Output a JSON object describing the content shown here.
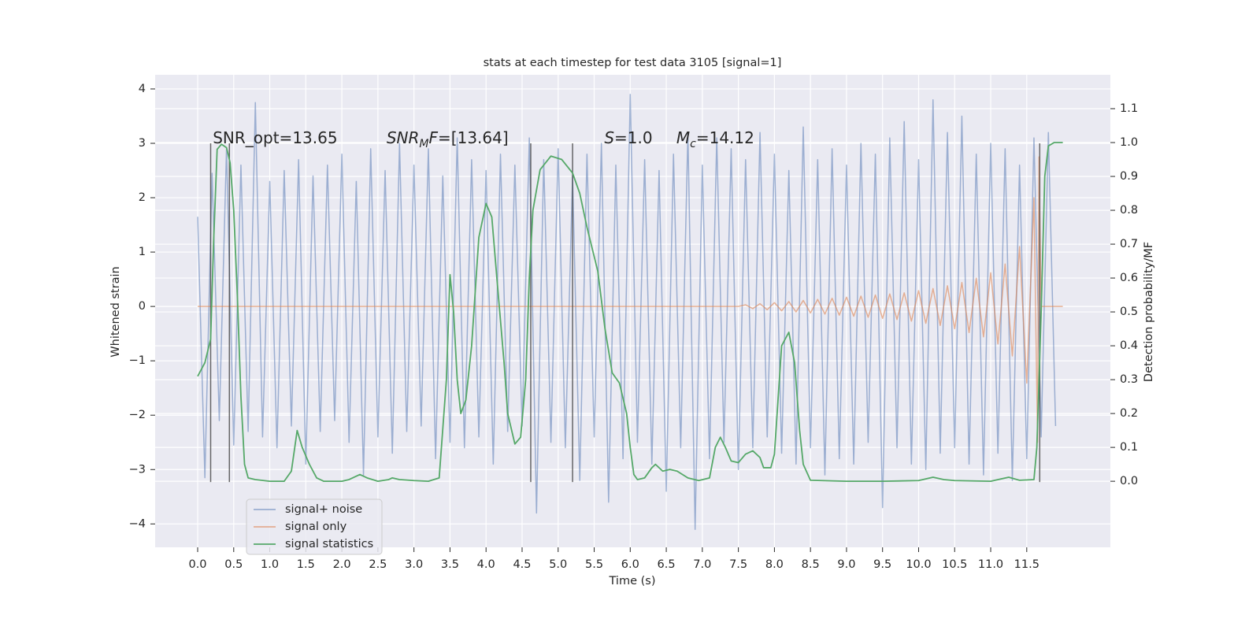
{
  "chart_data": {
    "type": "line",
    "title": "stats at each timestep for test data 3105 [signal=1]",
    "xlabel": "Time (s)",
    "ylabel": "Whitened strain",
    "y2label": "Detection probability/MF",
    "xlim": [
      -0.59,
      12.66
    ],
    "ylim": [
      -4.43,
      4.26
    ],
    "y2lim": [
      -0.195,
      1.2
    ],
    "xticks": [
      {
        "value": 0,
        "label": "0.0"
      },
      {
        "value": 0.5,
        "label": "0.5"
      },
      {
        "value": 1,
        "label": "1.0"
      },
      {
        "value": 1.5,
        "label": "1.5"
      },
      {
        "value": 2,
        "label": "2.0"
      },
      {
        "value": 2.5,
        "label": "2.5"
      },
      {
        "value": 3,
        "label": "3.0"
      },
      {
        "value": 3.5,
        "label": "3.5"
      },
      {
        "value": 4,
        "label": "4.0"
      },
      {
        "value": 4.5,
        "label": "4.5"
      },
      {
        "value": 5,
        "label": "5.0"
      },
      {
        "value": 5.5,
        "label": "5.5"
      },
      {
        "value": 6,
        "label": "6.0"
      },
      {
        "value": 6.5,
        "label": "6.5"
      },
      {
        "value": 7,
        "label": "7.0"
      },
      {
        "value": 7.5,
        "label": "7.5"
      },
      {
        "value": 8,
        "label": "8.0"
      },
      {
        "value": 8.5,
        "label": "8.5"
      },
      {
        "value": 9,
        "label": "9.0"
      },
      {
        "value": 9.5,
        "label": "9.5"
      },
      {
        "value": 10,
        "label": "10.0"
      },
      {
        "value": 10.5,
        "label": "10.5"
      },
      {
        "value": 11,
        "label": "11.0"
      },
      {
        "value": 11.5,
        "label": "11.5"
      }
    ],
    "yticks": [
      {
        "value": -4,
        "label": "−4"
      },
      {
        "value": -3,
        "label": "−3"
      },
      {
        "value": -2,
        "label": "−2"
      },
      {
        "value": -1,
        "label": "−1"
      },
      0,
      1,
      2,
      3,
      4
    ],
    "y2ticks": [
      {
        "value": 0,
        "label": "0.0"
      },
      {
        "value": 0.1,
        "label": "0.1"
      },
      {
        "value": 0.2,
        "label": "0.2"
      },
      {
        "value": 0.3,
        "label": "0.3"
      },
      {
        "value": 0.4,
        "label": "0.4"
      },
      {
        "value": 0.5,
        "label": "0.5"
      },
      {
        "value": 0.6,
        "label": "0.6"
      },
      {
        "value": 0.7,
        "label": "0.7"
      },
      {
        "value": 0.8,
        "label": "0.8"
      },
      {
        "value": 0.9,
        "label": "0.9"
      },
      {
        "value": 1,
        "label": "1.0"
      },
      {
        "value": 1.1,
        "label": "1.1"
      }
    ],
    "grid": true,
    "legend": "lower left",
    "series": [
      {
        "name": "signal+ noise",
        "color": "#4c72b0",
        "opacity": 0.5,
        "x": [
          0,
          0.1,
          0.2,
          0.3,
          0.4,
          0.5,
          0.6,
          0.7,
          0.8,
          0.9,
          1,
          1.1,
          1.2,
          1.3,
          1.4,
          1.5,
          1.6,
          1.7,
          1.8,
          1.9,
          2,
          2.1,
          2.2,
          2.3,
          2.4,
          2.5,
          2.6,
          2.7,
          2.8,
          2.9,
          3,
          3.1,
          3.2,
          3.3,
          3.4,
          3.5,
          3.6,
          3.7,
          3.8,
          3.9,
          4,
          4.1,
          4.2,
          4.3,
          4.4,
          4.5,
          4.6,
          4.7,
          4.8,
          4.9,
          5,
          5.1,
          5.2,
          5.3,
          5.4,
          5.5,
          5.6,
          5.7,
          5.8,
          5.9,
          6,
          6.1,
          6.2,
          6.3,
          6.4,
          6.5,
          6.6,
          6.7,
          6.8,
          6.9,
          7,
          7.1,
          7.2,
          7.3,
          7.4,
          7.5,
          7.6,
          7.7,
          7.8,
          7.9,
          8,
          8.1,
          8.2,
          8.3,
          8.4,
          8.5,
          8.6,
          8.7,
          8.8,
          8.9,
          9,
          9.1,
          9.2,
          9.3,
          9.4,
          9.5,
          9.6,
          9.7,
          9.8,
          9.9,
          10,
          10.1,
          10.2,
          10.3,
          10.4,
          10.5,
          10.6,
          10.7,
          10.8,
          10.9,
          11,
          11.1,
          11.2,
          11.3,
          11.4,
          11.5,
          11.6,
          11.7,
          11.8,
          11.9
        ],
        "values": [
          1.65,
          -3.15,
          2.45,
          -2.1,
          2.9,
          -2.55,
          2.6,
          -2.3,
          3.75,
          -2.4,
          2.3,
          -2.6,
          2.5,
          -2.2,
          2.7,
          -2.9,
          2.4,
          -2.3,
          2.6,
          -2.1,
          2.8,
          -2.5,
          2.3,
          -3.1,
          2.9,
          -2.4,
          2.5,
          -2.7,
          3.0,
          -2.3,
          2.6,
          -2.2,
          2.9,
          -2.8,
          2.4,
          -2.5,
          3.1,
          -2.6,
          2.7,
          -2.4,
          2.5,
          -2.9,
          2.8,
          -2.3,
          2.6,
          -2.2,
          3.1,
          -3.8,
          2.7,
          -2.5,
          2.9,
          -2.6,
          2.4,
          -3.2,
          2.8,
          -2.4,
          3.0,
          -3.6,
          2.6,
          -2.8,
          3.9,
          -2.5,
          2.7,
          -2.9,
          2.5,
          -3.4,
          2.8,
          -2.6,
          3.2,
          -4.1,
          2.6,
          -2.8,
          3.1,
          -2.5,
          2.9,
          -3.0,
          2.7,
          -2.6,
          3.2,
          -2.4,
          2.8,
          -2.7,
          2.5,
          -2.9,
          3.3,
          -2.6,
          2.7,
          -3.1,
          2.9,
          -2.8,
          2.6,
          -2.9,
          3.0,
          -2.5,
          2.8,
          -3.7,
          3.1,
          -2.6,
          3.4,
          -2.9,
          2.7,
          -3.0,
          3.8,
          -2.7,
          3.2,
          -2.6,
          3.5,
          -2.9,
          2.8,
          -3.1,
          3.0,
          -2.7,
          2.9,
          -3.2,
          2.6,
          -2.8,
          3.1,
          -2.4,
          3.2,
          -2.2
        ]
      },
      {
        "name": "signal only",
        "color": "#dd8452",
        "opacity": 0.6,
        "x": [
          0,
          7.5,
          7.6,
          7.7,
          7.8,
          7.9,
          8,
          8.1,
          8.2,
          8.3,
          8.4,
          8.5,
          8.6,
          8.7,
          8.8,
          8.9,
          9,
          9.1,
          9.2,
          9.3,
          9.4,
          9.5,
          9.6,
          9.7,
          9.8,
          9.9,
          10,
          10.1,
          10.2,
          10.3,
          10.4,
          10.5,
          10.6,
          10.7,
          10.8,
          10.9,
          11,
          11.1,
          11.2,
          11.3,
          11.4,
          11.5,
          11.6,
          11.65,
          11.67,
          11.7,
          12
        ],
        "values": [
          0,
          0,
          0.03,
          -0.04,
          0.05,
          -0.06,
          0.07,
          -0.08,
          0.09,
          -0.1,
          0.11,
          -0.12,
          0.13,
          -0.14,
          0.15,
          -0.16,
          0.17,
          -0.18,
          0.19,
          -0.2,
          0.21,
          -0.22,
          0.23,
          -0.24,
          0.25,
          -0.27,
          0.29,
          -0.31,
          0.33,
          -0.35,
          0.38,
          -0.41,
          0.44,
          -0.48,
          0.52,
          -0.56,
          0.62,
          -0.69,
          0.78,
          -0.91,
          1.1,
          -1.41,
          2.0,
          -2.5,
          2.75,
          0,
          0
        ]
      },
      {
        "name": "signal statistics",
        "color": "#55a868",
        "axis": "y2",
        "x": [
          0,
          0.1,
          0.18,
          0.22,
          0.27,
          0.33,
          0.4,
          0.45,
          0.5,
          0.55,
          0.6,
          0.65,
          0.7,
          0.8,
          1,
          1.2,
          1.3,
          1.38,
          1.45,
          1.55,
          1.65,
          1.75,
          2,
          2.1,
          2.25,
          2.35,
          2.5,
          2.65,
          2.7,
          2.8,
          3,
          3.2,
          3.35,
          3.45,
          3.5,
          3.55,
          3.6,
          3.65,
          3.72,
          3.8,
          3.9,
          4,
          4.08,
          4.15,
          4.25,
          4.3,
          4.4,
          4.48,
          4.55,
          4.6,
          4.65,
          4.75,
          4.9,
          5.05,
          5.2,
          5.3,
          5.4,
          5.55,
          5.65,
          5.75,
          5.85,
          5.95,
          6,
          6.05,
          6.1,
          6.2,
          6.3,
          6.35,
          6.45,
          6.55,
          6.65,
          6.8,
          6.95,
          7.1,
          7.18,
          7.25,
          7.32,
          7.4,
          7.5,
          7.6,
          7.7,
          7.8,
          7.85,
          7.95,
          8,
          8.1,
          8.2,
          8.28,
          8.35,
          8.4,
          8.5,
          9,
          9.5,
          10,
          10.2,
          10.35,
          10.5,
          11,
          11.25,
          11.4,
          11.6,
          11.64,
          11.7,
          11.75,
          11.8,
          11.88,
          12
        ],
        "values": [
          0.31,
          0.35,
          0.42,
          0.7,
          0.98,
          0.995,
          0.985,
          0.94,
          0.8,
          0.55,
          0.25,
          0.05,
          0.01,
          0.005,
          0,
          0,
          0.03,
          0.15,
          0.1,
          0.05,
          0.01,
          0,
          0,
          0.005,
          0.02,
          0.01,
          0,
          0.005,
          0.01,
          0.005,
          0.002,
          0,
          0.01,
          0.3,
          0.61,
          0.5,
          0.3,
          0.2,
          0.24,
          0.4,
          0.72,
          0.82,
          0.78,
          0.6,
          0.35,
          0.2,
          0.11,
          0.13,
          0.3,
          0.6,
          0.8,
          0.92,
          0.96,
          0.95,
          0.91,
          0.85,
          0.75,
          0.62,
          0.45,
          0.32,
          0.29,
          0.2,
          0.1,
          0.02,
          0.005,
          0.01,
          0.04,
          0.05,
          0.03,
          0.035,
          0.03,
          0.01,
          0.002,
          0.01,
          0.1,
          0.13,
          0.1,
          0.06,
          0.055,
          0.08,
          0.09,
          0.07,
          0.04,
          0.04,
          0.08,
          0.4,
          0.44,
          0.35,
          0.15,
          0.05,
          0.003,
          0,
          0,
          0.002,
          0.012,
          0.005,
          0.002,
          0,
          0.012,
          0.003,
          0.005,
          0.1,
          0.5,
          0.9,
          0.99,
          1.0,
          1.0
        ]
      }
    ],
    "vlines": {
      "x": [
        0.18,
        0.44,
        4.62,
        5.2,
        11.68
      ],
      "ymin": -3.23,
      "ymax": 3.0,
      "color": "#444444"
    },
    "annotations": [
      {
        "x": 0.21,
        "y": 3.0,
        "parts": [
          {
            "text": "SNR_opt=13.65"
          }
        ]
      },
      {
        "x": 2.62,
        "y": 3.0,
        "parts": [
          {
            "text": "SNR",
            "italic": true
          },
          {
            "text": "M",
            "italic": true,
            "sub": true
          },
          {
            "text": "F",
            "italic": true
          },
          {
            "text": "=[13.64]"
          }
        ]
      },
      {
        "x": 5.64,
        "y": 3.0,
        "parts": [
          {
            "text": "S",
            "italic": true
          },
          {
            "text": "=1.0"
          }
        ]
      },
      {
        "x": 6.64,
        "y": 3.0,
        "parts": [
          {
            "text": "M",
            "italic": true
          },
          {
            "text": "c",
            "italic": true,
            "sub": true
          },
          {
            "text": "=14.12"
          }
        ]
      }
    ]
  }
}
